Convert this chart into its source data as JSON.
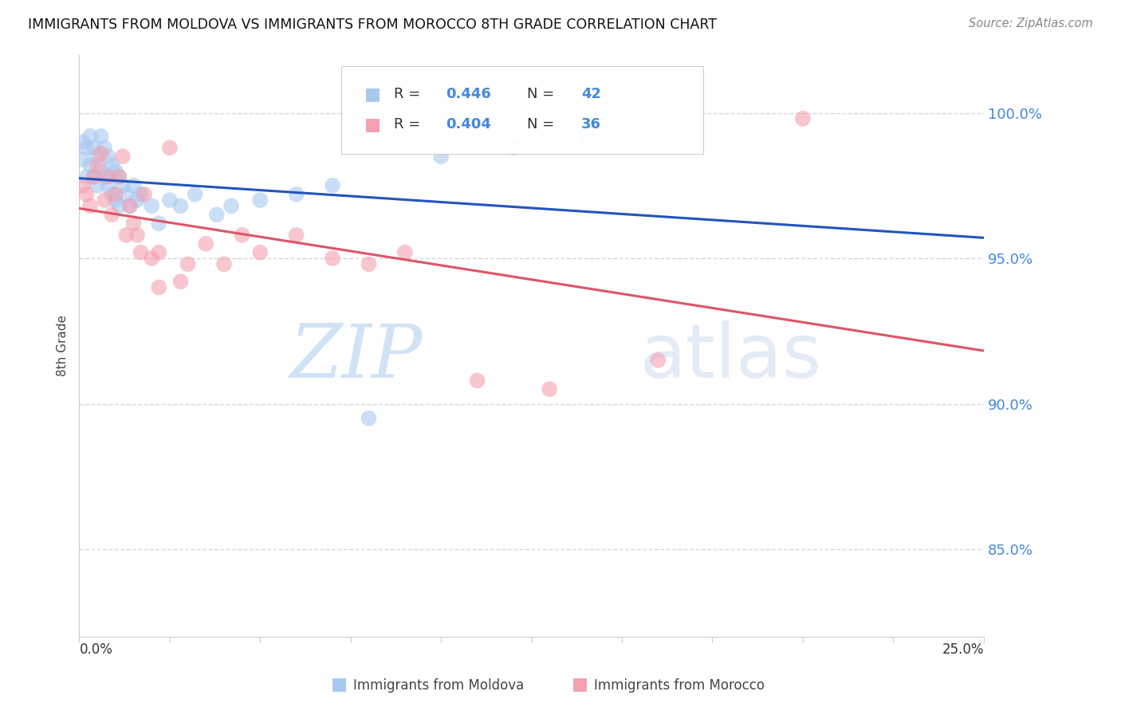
{
  "title": "IMMIGRANTS FROM MOLDOVA VS IMMIGRANTS FROM MOROCCO 8TH GRADE CORRELATION CHART",
  "source": "Source: ZipAtlas.com",
  "ylabel": "8th Grade",
  "ytick_vals": [
    1.0,
    0.95,
    0.9,
    0.85
  ],
  "xlim": [
    0.0,
    0.25
  ],
  "ylim": [
    0.82,
    1.02
  ],
  "moldova_R": 0.446,
  "moldova_N": 42,
  "morocco_R": 0.404,
  "morocco_N": 36,
  "moldova_color": "#a8c8f0",
  "morocco_color": "#f4a0b0",
  "moldova_line_color": "#2255bb",
  "morocco_line_color": "#dd5566",
  "background_color": "#ffffff",
  "legend_label_moldova": "Immigrants from Moldova",
  "legend_label_morocco": "Immigrants from Morocco",
  "moldova_x": [
    0.001,
    0.001,
    0.002,
    0.002,
    0.003,
    0.003,
    0.004,
    0.004,
    0.005,
    0.005,
    0.006,
    0.006,
    0.007,
    0.007,
    0.008,
    0.008,
    0.009,
    0.009,
    0.01,
    0.01,
    0.011,
    0.011,
    0.012,
    0.013,
    0.014,
    0.015,
    0.016,
    0.017,
    0.02,
    0.022,
    0.025,
    0.028,
    0.032,
    0.038,
    0.042,
    0.05,
    0.06,
    0.07,
    0.08,
    0.1,
    0.12,
    0.14
  ],
  "moldova_y": [
    0.99,
    0.984,
    0.988,
    0.978,
    0.992,
    0.982,
    0.988,
    0.978,
    0.985,
    0.975,
    0.992,
    0.98,
    0.988,
    0.978,
    0.985,
    0.975,
    0.982,
    0.972,
    0.98,
    0.97,
    0.978,
    0.968,
    0.975,
    0.972,
    0.968,
    0.975,
    0.97,
    0.972,
    0.968,
    0.962,
    0.97,
    0.968,
    0.972,
    0.965,
    0.968,
    0.97,
    0.972,
    0.975,
    0.895,
    0.985,
    0.988,
    0.992
  ],
  "morocco_x": [
    0.001,
    0.002,
    0.003,
    0.004,
    0.005,
    0.006,
    0.007,
    0.008,
    0.009,
    0.01,
    0.011,
    0.012,
    0.013,
    0.014,
    0.015,
    0.016,
    0.017,
    0.018,
    0.02,
    0.022,
    0.025,
    0.03,
    0.035,
    0.04,
    0.045,
    0.05,
    0.06,
    0.07,
    0.08,
    0.09,
    0.11,
    0.13,
    0.16,
    0.2,
    0.022,
    0.028
  ],
  "morocco_y": [
    0.975,
    0.972,
    0.968,
    0.978,
    0.982,
    0.986,
    0.97,
    0.978,
    0.965,
    0.972,
    0.978,
    0.985,
    0.958,
    0.968,
    0.962,
    0.958,
    0.952,
    0.972,
    0.95,
    0.952,
    0.988,
    0.948,
    0.955,
    0.948,
    0.958,
    0.952,
    0.958,
    0.95,
    0.948,
    0.952,
    0.908,
    0.905,
    0.915,
    0.998,
    0.94,
    0.942
  ]
}
